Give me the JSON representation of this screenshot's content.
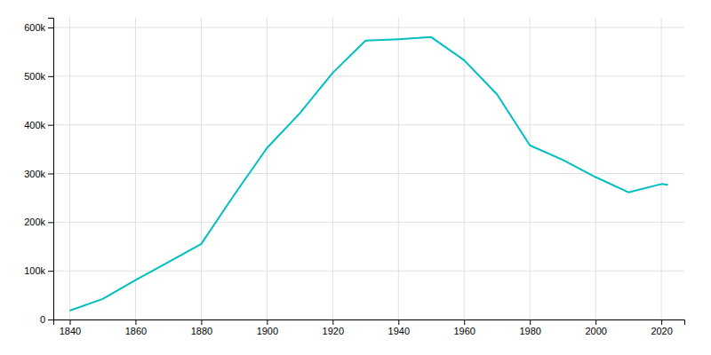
{
  "chart_data": {
    "type": "line",
    "x": [
      1840,
      1850,
      1860,
      1870,
      1880,
      1890,
      1900,
      1910,
      1920,
      1930,
      1940,
      1950,
      1960,
      1970,
      1980,
      1990,
      2000,
      2010,
      2020,
      2022
    ],
    "values": [
      18213,
      42261,
      81129,
      117714,
      155134,
      255664,
      352387,
      423715,
      506775,
      573076,
      575901,
      580132,
      532759,
      462768,
      357870,
      328123,
      292648,
      261310,
      278349,
      276807
    ],
    "color": "#00BFBF",
    "xlim": [
      1835,
      2027
    ],
    "ylim": [
      0,
      620000
    ],
    "xticks": [
      1840,
      1860,
      1880,
      1900,
      1920,
      1940,
      1960,
      1980,
      2000,
      2020
    ],
    "yticks": [
      0,
      {
        "value": 100000,
        "label": "100k"
      },
      {
        "value": 200000,
        "label": "200k"
      },
      {
        "value": 300000,
        "label": "300k"
      },
      {
        "value": 400000,
        "label": "400k"
      },
      {
        "value": 500000,
        "label": "500k"
      },
      {
        "value": 600000,
        "label": "600k"
      }
    ],
    "grid": true
  }
}
